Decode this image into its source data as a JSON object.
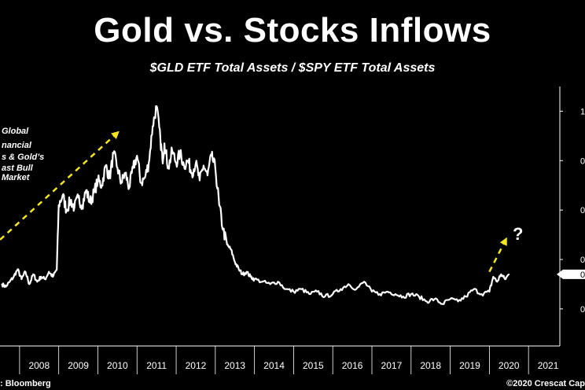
{
  "header": {
    "title": "Gold vs. Stocks Inflows",
    "subtitle": "$GLD ETF Total Assets / $SPY ETF Total Assets"
  },
  "annotation": {
    "lines": [
      "Global",
      "nancial",
      "s & Gold’s",
      "ast Bull",
      "Market"
    ]
  },
  "question_mark": "?",
  "footer": {
    "source": ": Bloomberg",
    "credit": "©2020 Crescat Cap"
  },
  "colors": {
    "background": "#000000",
    "line": "#ffffff",
    "arrow": "#f5e623",
    "grid": "#ffffff"
  },
  "chart_data": {
    "type": "line",
    "title": "Gold vs. Stocks Inflows",
    "subtitle": "$GLD ETF Total Assets / $SPY ETF Total Assets",
    "x_ticks": [
      "2008",
      "2009",
      "2010",
      "2011",
      "2012",
      "2013",
      "2014",
      "2015",
      "2016",
      "2017",
      "2018",
      "2019",
      "2020",
      "2021"
    ],
    "y_tick_labels": [
      "1",
      "0",
      "0",
      "0",
      "0"
    ],
    "current_value_label": "0",
    "xlim": [
      2007.5,
      2021.8
    ],
    "ylim": [
      0.05,
      1.1
    ],
    "grid": false,
    "series": [
      {
        "x": [
          2007.55,
          2007.65,
          2007.75,
          2007.85,
          2007.95,
          2008.05,
          2008.15,
          2008.25,
          2008.35,
          2008.45,
          2008.55,
          2008.65,
          2008.75,
          2008.85,
          2008.95,
          2009.0,
          2009.1,
          2009.2,
          2009.3,
          2009.4,
          2009.5,
          2009.6,
          2009.7,
          2009.8,
          2009.9,
          2010.0,
          2010.1,
          2010.2,
          2010.3,
          2010.4,
          2010.5,
          2010.6,
          2010.7,
          2010.8,
          2010.9,
          2011.0,
          2011.1,
          2011.2,
          2011.3,
          2011.4,
          2011.5,
          2011.6,
          2011.65,
          2011.7,
          2011.8,
          2011.9,
          2012.0,
          2012.1,
          2012.2,
          2012.3,
          2012.4,
          2012.5,
          2012.6,
          2012.7,
          2012.8,
          2012.9,
          2013.0,
          2013.1,
          2013.2,
          2013.3,
          2013.4,
          2013.5,
          2013.6,
          2013.7,
          2013.8,
          2013.9,
          2014.0,
          2014.2,
          2014.4,
          2014.6,
          2014.8,
          2015.0,
          2015.2,
          2015.4,
          2015.6,
          2015.8,
          2016.0,
          2016.2,
          2016.4,
          2016.6,
          2016.8,
          2017.0,
          2017.2,
          2017.4,
          2017.6,
          2017.8,
          2018.0,
          2018.2,
          2018.4,
          2018.6,
          2018.8,
          2019.0,
          2019.2,
          2019.4,
          2019.6,
          2019.8,
          2020.0,
          2020.1,
          2020.2,
          2020.3,
          2020.4,
          2020.5
        ],
        "y": [
          0.3,
          0.29,
          0.31,
          0.33,
          0.36,
          0.32,
          0.35,
          0.3,
          0.34,
          0.31,
          0.33,
          0.32,
          0.35,
          0.33,
          0.36,
          0.62,
          0.66,
          0.6,
          0.64,
          0.61,
          0.65,
          0.62,
          0.68,
          0.63,
          0.67,
          0.72,
          0.7,
          0.78,
          0.73,
          0.83,
          0.77,
          0.71,
          0.75,
          0.69,
          0.77,
          0.82,
          0.71,
          0.73,
          0.79,
          0.94,
          1.02,
          0.88,
          0.8,
          0.87,
          0.77,
          0.84,
          0.79,
          0.83,
          0.78,
          0.8,
          0.75,
          0.79,
          0.72,
          0.78,
          0.74,
          0.82,
          0.77,
          0.62,
          0.52,
          0.46,
          0.44,
          0.39,
          0.36,
          0.34,
          0.35,
          0.33,
          0.32,
          0.31,
          0.3,
          0.31,
          0.28,
          0.27,
          0.28,
          0.26,
          0.27,
          0.25,
          0.26,
          0.28,
          0.3,
          0.28,
          0.31,
          0.27,
          0.26,
          0.27,
          0.26,
          0.25,
          0.26,
          0.25,
          0.23,
          0.24,
          0.22,
          0.24,
          0.23,
          0.25,
          0.28,
          0.26,
          0.27,
          0.33,
          0.31,
          0.34,
          0.32,
          0.34
        ]
      }
    ],
    "annotations": [
      {
        "type": "arrow",
        "style": "dashed",
        "from": [
          2007.5,
          0.48
        ],
        "to": [
          2010.55,
          0.92
        ]
      },
      {
        "type": "arrow",
        "style": "dashed",
        "from": [
          2020.0,
          0.35
        ],
        "to": [
          2020.45,
          0.49
        ]
      }
    ]
  }
}
